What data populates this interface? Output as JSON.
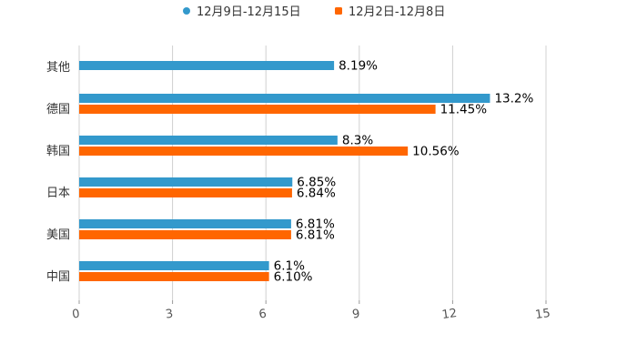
{
  "chart_data": {
    "type": "bar",
    "orientation": "horizontal",
    "title": "",
    "xlabel": "",
    "ylabel": "",
    "xlim": [
      0,
      15
    ],
    "x_ticks": [
      0,
      3,
      6,
      9,
      12,
      15
    ],
    "grid": true,
    "legend_position": "top-center",
    "categories": [
      "其他",
      "德国",
      "韩国",
      "日本",
      "美国",
      "中国"
    ],
    "series": [
      {
        "name": "12月9日-12月15日",
        "color": "#3399cc",
        "values": [
          8.19,
          13.2,
          8.3,
          6.85,
          6.81,
          6.1
        ],
        "labels": [
          "8.19%",
          "13.2%",
          "8.3%",
          "6.85%",
          "6.81%",
          "6.1%"
        ]
      },
      {
        "name": "12月2日-12月8日",
        "color": "#ff6600",
        "values": [
          null,
          11.45,
          10.56,
          6.84,
          6.81,
          6.1
        ],
        "labels": [
          null,
          "11.45%",
          "10.56%",
          "6.84%",
          "6.81%",
          "6.10%"
        ]
      }
    ]
  }
}
